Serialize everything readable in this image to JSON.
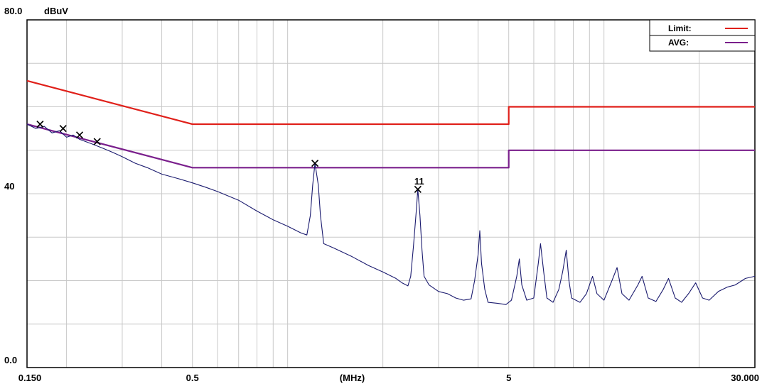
{
  "chart_data": {
    "type": "line",
    "title": "",
    "xlabel": "(MHz)",
    "ylabel": "dBuV",
    "x_scale": "log",
    "xlim": [
      0.15,
      30
    ],
    "ylim": [
      0,
      80
    ],
    "x_tick_labels": [
      {
        "value": 0.15,
        "label": "0.150"
      },
      {
        "value": 0.5,
        "label": "0.5"
      },
      {
        "value": 1.6,
        "label": "(MHz)"
      },
      {
        "value": 5,
        "label": "5"
      },
      {
        "value": 30,
        "label": "30.000"
      }
    ],
    "y_tick_labels": [
      {
        "value": 80,
        "label": "80.0"
      },
      {
        "value": 40,
        "label": "40"
      },
      {
        "value": 0,
        "label": "0.0"
      }
    ],
    "grid": true,
    "legend_position": "top-right",
    "series": [
      {
        "name": "Limit:",
        "color": "#e0201a",
        "points": [
          [
            0.15,
            66
          ],
          [
            0.5,
            56
          ],
          [
            5,
            56
          ],
          [
            5,
            60
          ],
          [
            30,
            60
          ]
        ]
      },
      {
        "name": "AVG:",
        "color": "#7a1f8c",
        "points": [
          [
            0.15,
            56
          ],
          [
            0.5,
            46
          ],
          [
            5,
            46
          ],
          [
            5,
            50
          ],
          [
            30,
            50
          ]
        ]
      },
      {
        "name": "",
        "color": "#1a1a6e",
        "points": [
          [
            0.15,
            56
          ],
          [
            0.16,
            55
          ],
          [
            0.17,
            55.5
          ],
          [
            0.18,
            54
          ],
          [
            0.19,
            54.5
          ],
          [
            0.2,
            53
          ],
          [
            0.21,
            53.5
          ],
          [
            0.22,
            52.5
          ],
          [
            0.24,
            51.5
          ],
          [
            0.26,
            50.5
          ],
          [
            0.28,
            49.5
          ],
          [
            0.3,
            48.5
          ],
          [
            0.33,
            47
          ],
          [
            0.36,
            46
          ],
          [
            0.4,
            44.5
          ],
          [
            0.45,
            43.5
          ],
          [
            0.5,
            42.5
          ],
          [
            0.55,
            41.5
          ],
          [
            0.6,
            40.5
          ],
          [
            0.7,
            38.5
          ],
          [
            0.8,
            36
          ],
          [
            0.9,
            34
          ],
          [
            1.0,
            32.5
          ],
          [
            1.1,
            31
          ],
          [
            1.15,
            30.5
          ],
          [
            1.18,
            35
          ],
          [
            1.2,
            42
          ],
          [
            1.22,
            47
          ],
          [
            1.25,
            42
          ],
          [
            1.27,
            35
          ],
          [
            1.3,
            28.5
          ],
          [
            1.4,
            27.5
          ],
          [
            1.6,
            25.5
          ],
          [
            1.8,
            23.5
          ],
          [
            2.0,
            22
          ],
          [
            2.2,
            20.5
          ],
          [
            2.3,
            19.5
          ],
          [
            2.4,
            18.8
          ],
          [
            2.45,
            21
          ],
          [
            2.5,
            28
          ],
          [
            2.55,
            36
          ],
          [
            2.58,
            41
          ],
          [
            2.62,
            35
          ],
          [
            2.66,
            27
          ],
          [
            2.7,
            21
          ],
          [
            2.8,
            19
          ],
          [
            3.0,
            17.5
          ],
          [
            3.2,
            17
          ],
          [
            3.4,
            16
          ],
          [
            3.6,
            15.5
          ],
          [
            3.8,
            15.8
          ],
          [
            3.9,
            20
          ],
          [
            4.0,
            26
          ],
          [
            4.05,
            31.5
          ],
          [
            4.1,
            24
          ],
          [
            4.2,
            18
          ],
          [
            4.3,
            15
          ],
          [
            4.6,
            14.8
          ],
          [
            4.9,
            14.5
          ],
          [
            5.1,
            15.5
          ],
          [
            5.3,
            21
          ],
          [
            5.4,
            25
          ],
          [
            5.5,
            19
          ],
          [
            5.7,
            15.5
          ],
          [
            6.0,
            16
          ],
          [
            6.2,
            24
          ],
          [
            6.3,
            28.5
          ],
          [
            6.45,
            22
          ],
          [
            6.6,
            16
          ],
          [
            6.9,
            15
          ],
          [
            7.2,
            18
          ],
          [
            7.4,
            22
          ],
          [
            7.6,
            27
          ],
          [
            7.75,
            20
          ],
          [
            7.9,
            16
          ],
          [
            8.4,
            15
          ],
          [
            8.8,
            17
          ],
          [
            9.2,
            21
          ],
          [
            9.5,
            17
          ],
          [
            10,
            15.5
          ],
          [
            10.6,
            20
          ],
          [
            11,
            23
          ],
          [
            11.4,
            17
          ],
          [
            12,
            15.5
          ],
          [
            12.8,
            19
          ],
          [
            13.2,
            21
          ],
          [
            13.8,
            16
          ],
          [
            14.6,
            15.2
          ],
          [
            15.4,
            18
          ],
          [
            16,
            20.5
          ],
          [
            16.8,
            16
          ],
          [
            17.6,
            15
          ],
          [
            18.5,
            17
          ],
          [
            19.5,
            19.5
          ],
          [
            20.5,
            16
          ],
          [
            21.5,
            15.5
          ],
          [
            23,
            17.5
          ],
          [
            24.5,
            18.5
          ],
          [
            26,
            19
          ],
          [
            28,
            20.5
          ],
          [
            30,
            21
          ]
        ]
      }
    ],
    "markers": [
      {
        "x": 0.165,
        "y": 56,
        "label": ""
      },
      {
        "x": 0.195,
        "y": 55,
        "label": ""
      },
      {
        "x": 0.22,
        "y": 53.5,
        "label": ""
      },
      {
        "x": 0.25,
        "y": 52,
        "label": ""
      },
      {
        "x": 1.22,
        "y": 47,
        "label": ""
      },
      {
        "x": 2.58,
        "y": 41,
        "label": "11"
      }
    ]
  }
}
